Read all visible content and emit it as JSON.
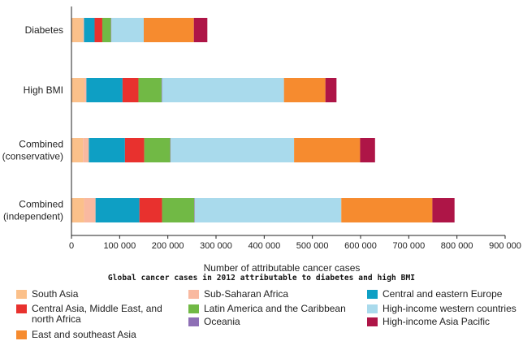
{
  "caption": "Global cancer cases in 2012 attributable to diabetes and high BMI",
  "chart_data": {
    "type": "bar",
    "orientation": "horizontal",
    "stacked": true,
    "xlabel": "Number of attributable cancer cases",
    "xlim": [
      0,
      900000
    ],
    "xticks": [
      0,
      100000,
      200000,
      300000,
      400000,
      500000,
      600000,
      700000,
      800000,
      900000
    ],
    "xtick_labels": [
      "0",
      "100 000",
      "200 000",
      "300 000",
      "400 000",
      "500 000",
      "600 000",
      "700 000",
      "800 000",
      "900 000"
    ],
    "grid": false,
    "legend_position": "bottom",
    "categories": [
      {
        "label": "Diabetes"
      },
      {
        "label": "High BMI"
      },
      {
        "label": "Combined",
        "label2": "(conservative)"
      },
      {
        "label": "Combined",
        "label2": "(independent)"
      }
    ],
    "series": [
      {
        "name": "South Asia",
        "color": "#fbc08a",
        "values": [
          24000,
          27000,
          24000,
          26000
        ]
      },
      {
        "name": "Sub-Saharan Africa",
        "color": "#f9b9a0",
        "values": [
          2000,
          4000,
          12000,
          24000
        ]
      },
      {
        "name": "Central and eastern Europe",
        "color": "#0e9fc4",
        "values": [
          22000,
          75000,
          75000,
          91000
        ]
      },
      {
        "name": "Central Asia, Middle East, and north Africa",
        "color": "#e8312e",
        "values": [
          16000,
          33000,
          40000,
          47000
        ]
      },
      {
        "name": "Latin America and the Caribbean",
        "color": "#71b945",
        "values": [
          18000,
          48000,
          54000,
          67000
        ]
      },
      {
        "name": "Oceania",
        "color": "#8e6fb5",
        "values": [
          1000,
          1000,
          1000,
          1000
        ]
      },
      {
        "name": "High-income western countries",
        "color": "#a9daec",
        "values": [
          67000,
          253000,
          256000,
          304000
        ]
      },
      {
        "name": "East and southeast Asia",
        "color": "#f68b2f",
        "values": [
          104000,
          86000,
          137000,
          189000
        ]
      },
      {
        "name": "High-income Asia Pacific",
        "color": "#ae1547",
        "values": [
          28000,
          23000,
          31000,
          46000
        ]
      }
    ]
  },
  "legend": {
    "items": [
      {
        "name": "South Asia",
        "color": "#fbc08a"
      },
      {
        "name": "Sub-Saharan Africa",
        "color": "#f9b9a0"
      },
      {
        "name": "Central and eastern Europe",
        "color": "#0e9fc4"
      },
      {
        "name": "Central Asia, Middle East, and north Africa",
        "color": "#e8312e"
      },
      {
        "name": "Latin America and the Caribbean",
        "color": "#71b945"
      },
      {
        "name": "High-income western countries",
        "color": "#a9daec"
      },
      {
        "name": "East and southeast Asia",
        "color": "#f68b2f"
      },
      {
        "name": "Oceania",
        "color": "#8e6fb5"
      },
      {
        "name": "High-income Asia Pacific",
        "color": "#ae1547"
      }
    ]
  }
}
